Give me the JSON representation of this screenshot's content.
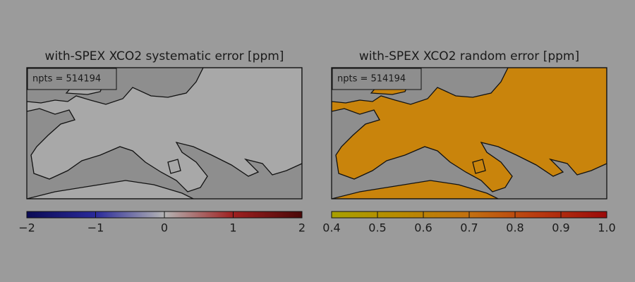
{
  "chart_data": [
    {
      "type": "map",
      "title": "with-SPEX XCO2 systematic error [ppm]",
      "annotation": "npts = 514194",
      "land_color": "#a8a8a8",
      "sea_color": "#8e8e8e",
      "colormap": [
        "#0b0b55",
        "#2a2a9a",
        "#b4b4b4",
        "#9e2020",
        "#4a0808"
      ],
      "clim": [
        -2,
        2
      ],
      "cticks": [
        {
          "value": -2,
          "label": "−2"
        },
        {
          "value": -1,
          "label": "−1"
        },
        0,
        1,
        2
      ]
    },
    {
      "type": "map",
      "title": "with-SPEX XCO2 random error [ppm]",
      "annotation": "npts = 514194",
      "land_color": "#c9840c",
      "sea_color": "#8e8e8e",
      "colormap": [
        "#a8a000",
        "#b88a00",
        "#c27010",
        "#b83a10",
        "#9a0a0a"
      ],
      "clim": [
        0.4,
        1.0
      ],
      "cticks": [
        0.4,
        0.5,
        0.6,
        0.7,
        0.8,
        0.9,
        {
          "value": 1,
          "label": "1.0"
        }
      ]
    }
  ]
}
